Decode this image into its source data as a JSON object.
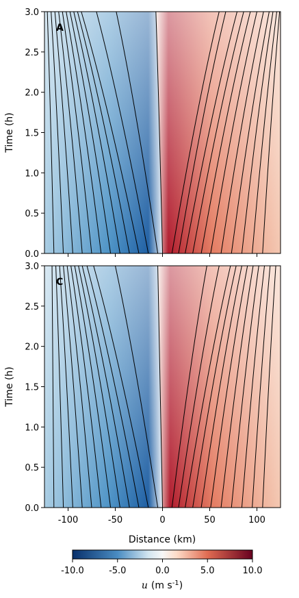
{
  "chart_data": [
    {
      "type": "heatmap",
      "panel_label": "A",
      "xlabel": "",
      "ylabel": "Time (h)",
      "xlim": [
        -125,
        125
      ],
      "ylim": [
        0,
        3
      ],
      "x_ticks": [
        -100,
        -50,
        0,
        50,
        100
      ],
      "x_tick_labels": [],
      "y_ticks": [
        0,
        0.5,
        1.0,
        1.5,
        2.0,
        2.5,
        3.0
      ],
      "y_tick_labels": [
        "0.0",
        "0.5",
        "1.0",
        "1.5",
        "2.0",
        "2.5",
        "3.0"
      ],
      "field": "u",
      "contours_left": [
        {
          "x0": -125,
          "x3": -125
        },
        {
          "x0": -115,
          "x3": -122
        },
        {
          "x0": -105,
          "x3": -118
        },
        {
          "x0": -95,
          "x3": -114
        },
        {
          "x0": -85,
          "x3": -110
        },
        {
          "x0": -75,
          "x3": -106
        },
        {
          "x0": -65,
          "x3": -102
        },
        {
          "x0": -55,
          "x3": -98
        },
        {
          "x0": -45,
          "x3": -94
        },
        {
          "x0": -35,
          "x3": -90
        },
        {
          "x0": -25,
          "x3": -86
        },
        {
          "x0": -15,
          "x3": -70
        },
        {
          "x0": -5,
          "x3": -49
        },
        {
          "x0": 0,
          "x3": -7
        }
      ],
      "contours_right": [
        {
          "x0": 10,
          "x3": 60
        },
        {
          "x0": 17,
          "x3": 67
        },
        {
          "x0": 24,
          "x3": 79
        },
        {
          "x0": 32,
          "x3": 86
        },
        {
          "x0": 41,
          "x3": 93
        },
        {
          "x0": 51,
          "x3": 100
        },
        {
          "x0": 62,
          "x3": 107
        },
        {
          "x0": 73,
          "x3": 113
        },
        {
          "x0": 84,
          "x3": 117
        },
        {
          "x0": 95,
          "x3": 121
        },
        {
          "x0": 106,
          "x3": 124
        }
      ]
    },
    {
      "type": "heatmap",
      "panel_label": "C",
      "xlabel": "Distance (km)",
      "ylabel": "Time (h)",
      "xlim": [
        -125,
        125
      ],
      "ylim": [
        0,
        3
      ],
      "x_ticks": [
        -100,
        -50,
        0,
        50,
        100
      ],
      "x_tick_labels": [
        "-100",
        "-50",
        "0",
        "50",
        "100"
      ],
      "y_ticks": [
        0,
        0.5,
        1.0,
        1.5,
        2.0,
        2.5,
        3.0
      ],
      "y_tick_labels": [
        "0.0",
        "0.5",
        "1.0",
        "1.5",
        "2.0",
        "2.5",
        "3.0"
      ],
      "field": "u",
      "contours_left": [
        {
          "x0": -125,
          "x3": -125
        },
        {
          "x0": -115,
          "x3": -117
        },
        {
          "x0": -105,
          "x3": -113
        },
        {
          "x0": -95,
          "x3": -109
        },
        {
          "x0": -85,
          "x3": -105
        },
        {
          "x0": -75,
          "x3": -101
        },
        {
          "x0": -65,
          "x3": -97
        },
        {
          "x0": -55,
          "x3": -93
        },
        {
          "x0": -45,
          "x3": -89
        },
        {
          "x0": -35,
          "x3": -85
        },
        {
          "x0": -25,
          "x3": -80
        },
        {
          "x0": -15,
          "x3": -73
        },
        {
          "x0": -5,
          "x3": -50
        },
        {
          "x0": 0,
          "x3": -5
        }
      ],
      "contours_right": [
        {
          "x0": 10,
          "x3": 47
        },
        {
          "x0": 17,
          "x3": 60
        },
        {
          "x0": 24,
          "x3": 72
        },
        {
          "x0": 32,
          "x3": 78
        },
        {
          "x0": 41,
          "x3": 84
        },
        {
          "x0": 51,
          "x3": 90
        },
        {
          "x0": 62,
          "x3": 96
        },
        {
          "x0": 73,
          "x3": 102
        },
        {
          "x0": 84,
          "x3": 108
        },
        {
          "x0": 95,
          "x3": 114
        },
        {
          "x0": 106,
          "x3": 120
        }
      ]
    }
  ],
  "colorbar": {
    "min": -10,
    "max": 10,
    "ticks": [
      -10,
      -5,
      0,
      5,
      10
    ],
    "tick_labels": [
      "-10.0",
      "-5.0",
      "0.0",
      "5.0",
      "10.0"
    ],
    "label_symbol": "u",
    "label_units": "(m s",
    "label_exp": "-1",
    "label_close": ")",
    "colormap": "RdBu_r",
    "colors": {
      "neg_strong": "#08306b",
      "neg_mid": "#4a8cc2",
      "neg_light": "#d1e5f0",
      "zero": "#f7f7f7",
      "pos_light": "#fddbc7",
      "pos_mid": "#e06c52",
      "pos_strong": "#67001f"
    }
  }
}
